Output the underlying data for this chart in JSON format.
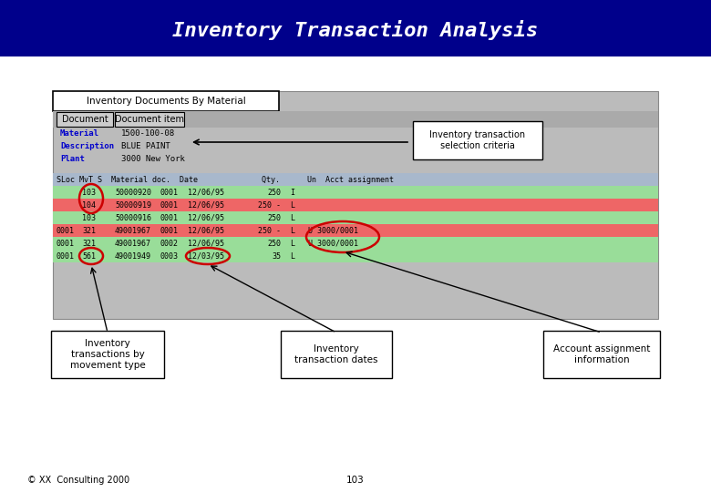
{
  "title": "Inventory Transaction Analysis",
  "title_bg": "#00008B",
  "title_color": "#FFFFFF",
  "screen_title": "Inventory Documents By Material",
  "tab1": "Document",
  "tab2": "Document item",
  "field_labels": [
    "Material",
    "Description",
    "Plant"
  ],
  "field_values": [
    "1500-100-08",
    "BLUE PAINT",
    "3000 New York"
  ],
  "field_label_color": "#0000CC",
  "table_header_bg": "#A8B8CC",
  "table_rows": [
    {
      "sloc": "    ",
      "mvt": "103",
      "doc": "50000920",
      "item": "0001",
      "date": "12/06/95",
      "qty": "250",
      "un": "I",
      "acct": "          ",
      "bg": "#99DD99",
      "circle_mvt": true,
      "circle_date": false,
      "circle_acct": false
    },
    {
      "sloc": "    ",
      "mvt": "104",
      "doc": "50000919",
      "item": "0001",
      "date": "12/06/95",
      "qty": "250 -",
      "un": "L",
      "acct": "          ",
      "bg": "#EE6666",
      "circle_mvt": true,
      "circle_date": false,
      "circle_acct": false
    },
    {
      "sloc": "    ",
      "mvt": "103",
      "doc": "50000916",
      "item": "0001",
      "date": "12/06/95",
      "qty": "250",
      "un": "L",
      "acct": "          ",
      "bg": "#99DD99",
      "circle_mvt": false,
      "circle_date": false,
      "circle_acct": false
    },
    {
      "sloc": "0001",
      "mvt": "321",
      "doc": "49001967",
      "item": "0001",
      "date": "12/06/95",
      "qty": "250 -",
      "un": "L",
      "acct": "U 3000/0001",
      "bg": "#EE6666",
      "circle_mvt": false,
      "circle_date": false,
      "circle_acct": true
    },
    {
      "sloc": "0001",
      "mvt": "321",
      "doc": "49001967",
      "item": "0002",
      "date": "12/06/95",
      "qty": "250",
      "un": "L",
      "acct": "U 3000/0001",
      "bg": "#99DD99",
      "circle_mvt": false,
      "circle_date": false,
      "circle_acct": true
    },
    {
      "sloc": "0001",
      "mvt": "561",
      "doc": "49001949",
      "item": "0003",
      "date": "12/03/95",
      "qty": "35",
      "un": "L",
      "acct": "          ",
      "bg": "#99DD99",
      "circle_mvt": true,
      "circle_date": true,
      "circle_acct": false
    }
  ],
  "callout_criteria": "Inventory transaction\nselection criteria",
  "callout_mvt": "Inventory\ntransactions by\nmovement type",
  "callout_dates": "Inventory\ntransaction dates",
  "callout_acct": "Account assignment\ninformation",
  "footer_left": "© XX  Consulting 2000",
  "footer_center": "103",
  "bg_color": "#FFFFFF",
  "screen_bg": "#BBBBBB",
  "screen_border": "#888888"
}
